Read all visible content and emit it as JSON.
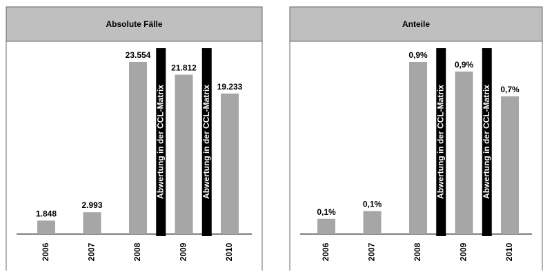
{
  "chart_data": [
    {
      "type": "bar",
      "title": "Absolute Fälle",
      "categories": [
        "2006",
        "2007",
        "2008",
        "2009",
        "2010"
      ],
      "values": [
        1848,
        2993,
        23554,
        21812,
        19233
      ],
      "value_labels": [
        "1.848",
        "2.993",
        "23.554",
        "21.812",
        "19.233"
      ],
      "color": "#a6a6a6",
      "annotations": [
        "Abwertung in der CCL-Matrix",
        "Abwertung in der CCL-Matrix"
      ]
    },
    {
      "type": "bar",
      "title": "Anteile",
      "categories": [
        "2006",
        "2007",
        "2008",
        "2009",
        "2010"
      ],
      "values": [
        0.08,
        0.12,
        0.9,
        0.85,
        0.72
      ],
      "value_labels": [
        "0,1%",
        "0,1%",
        "0,9%",
        "0,9%",
        "0,7%"
      ],
      "color": "#a6a6a6",
      "annotations": [
        "Abwertung in der CCL-Matrix",
        "Abwertung in der CCL-Matrix"
      ]
    }
  ]
}
